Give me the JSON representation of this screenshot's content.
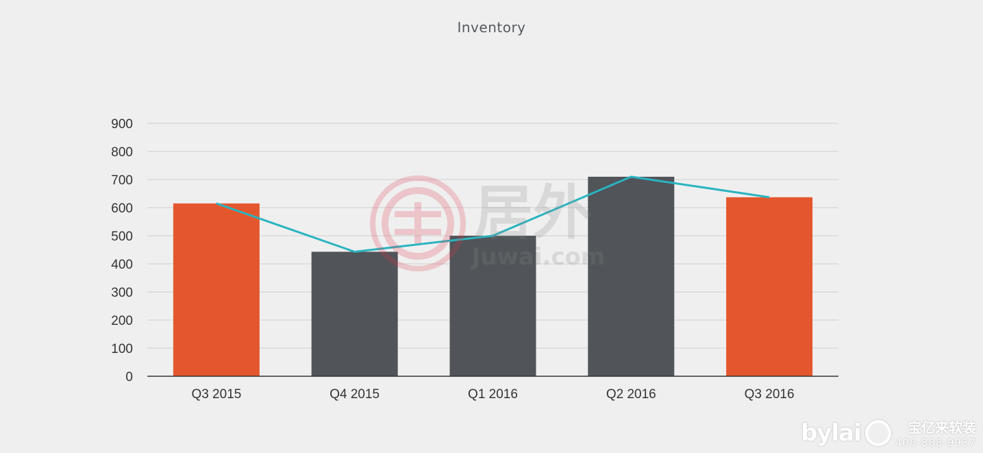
{
  "chart_data": {
    "type": "bar",
    "title": "Inventory",
    "categories": [
      "Q3 2015",
      "Q4 2015",
      "Q1 2016",
      "Q2 2016",
      "Q3 2016"
    ],
    "values": [
      615,
      443,
      500,
      710,
      637
    ],
    "bar_colors": [
      "#e4572e",
      "#515459",
      "#515459",
      "#515459",
      "#e4572e"
    ],
    "line_series": {
      "type": "line",
      "values": [
        615,
        443,
        500,
        710,
        637
      ],
      "color": "#2ab4c0"
    },
    "y_ticks": [
      "0",
      "100",
      "200",
      "300",
      "400",
      "500",
      "600",
      "700",
      "800",
      "900"
    ],
    "ylim": [
      0,
      900
    ],
    "grid": true,
    "legend": "none"
  },
  "watermark": {
    "brand_cn": "居外",
    "brand_url": "Juwai.com",
    "color": "#e0354a"
  },
  "brand_footer": {
    "word": "bylai",
    "cn_name": "宝亿来软装",
    "phone": "400-888-9937"
  }
}
